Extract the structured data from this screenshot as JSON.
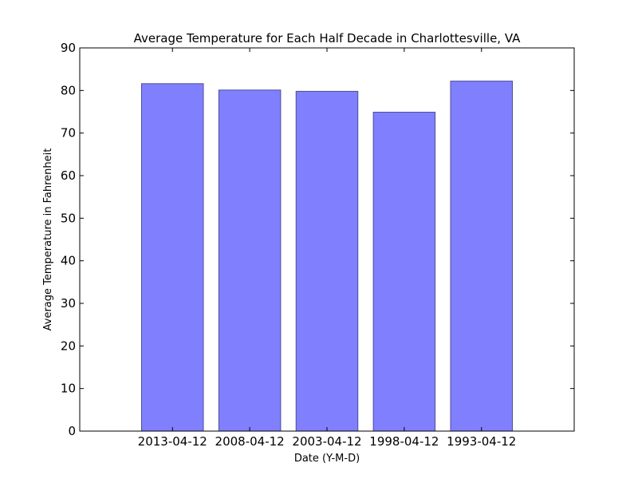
{
  "chart_data": {
    "type": "bar",
    "title": "Average Temperature for Each Half Decade in Charlottesville, VA",
    "xlabel": "Date (Y-M-D)",
    "ylabel": "Average Temperature in Fahrenheit",
    "categories": [
      "2013-04-12",
      "2008-04-12",
      "2003-04-12",
      "1998-04-12",
      "1993-04-12"
    ],
    "values": [
      81.6,
      80.1,
      79.8,
      74.9,
      82.2
    ],
    "ylim": [
      0,
      90
    ],
    "yticks": [
      0,
      10,
      20,
      30,
      40,
      50,
      60,
      70,
      80,
      90
    ],
    "grid": false,
    "bar_color": "#8080ff",
    "bar_edge_color": "#4c4c99"
  }
}
